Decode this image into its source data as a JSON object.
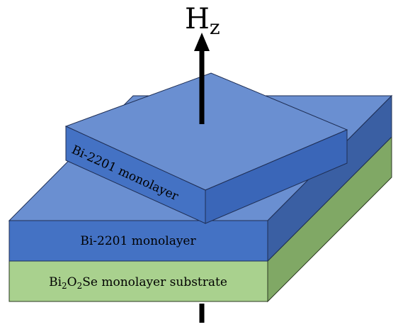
{
  "field_label": {
    "main": "H",
    "sub": "z"
  },
  "top_layer": {
    "label": "Bi-2201 monolayer"
  },
  "middle_layer": {
    "label": "Bi-2201 monolayer"
  },
  "substrate": {
    "parts": [
      "Bi",
      "2",
      "O",
      "2",
      "Se monolayer substrate"
    ]
  }
}
